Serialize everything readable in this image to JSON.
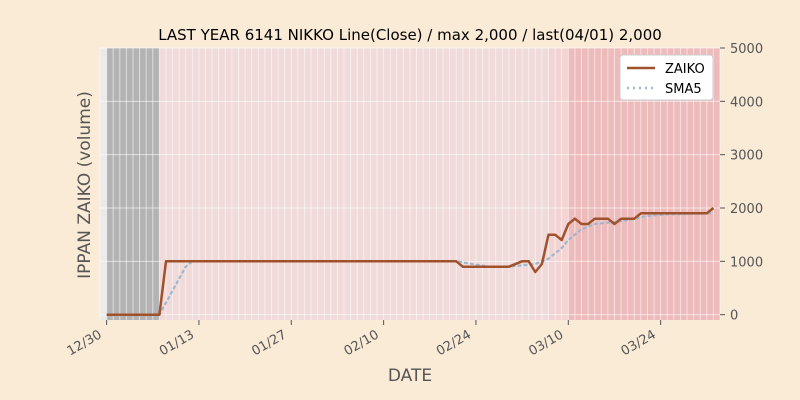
{
  "chart_data": {
    "type": "line",
    "title": "LAST YEAR 6141 NIKKO Line(Close) / max 2,000 / last(04/01) 2,000",
    "xlabel": "DATE",
    "ylabel": "IPPAN ZAIKO (volume)",
    "ylim": [
      -100,
      5000
    ],
    "yticks": [
      0,
      1000,
      2000,
      3000,
      4000,
      5000
    ],
    "ytick_labels": [
      "0",
      "1000",
      "2000",
      "3000",
      "4000",
      "5000"
    ],
    "y_axis_side": "right",
    "xlim_dates": [
      "2024-12-29",
      "2025-04-02"
    ],
    "xticks": [
      "2024-12-30",
      "2025-01-13",
      "2025-01-27",
      "2025-02-10",
      "2025-02-24",
      "2025-03-10",
      "2025-03-24"
    ],
    "xtick_labels": [
      "12/30",
      "01/13",
      "01/27",
      "02/10",
      "02/24",
      "03/10",
      "03/24"
    ],
    "grid": true,
    "legend": "top-right",
    "colors": {
      "zaiko": "#a0522d",
      "sma5": "#9fb6cd",
      "gray_band": "#a9a9a9",
      "pink_band": "#f4cccc",
      "red_band": "#f08080",
      "plot_bg": "#ebebeb"
    },
    "bands": [
      {
        "start": "2024-12-30",
        "end": "2025-01-07",
        "color": "gray_band",
        "opacity": 0.85
      },
      {
        "start": "2025-01-07",
        "end": "2025-03-07",
        "color": "pink_band",
        "opacity": 0.55
      },
      {
        "start": "2025-03-07",
        "end": "2025-03-10",
        "color": "pink_band",
        "opacity": 0.75
      },
      {
        "start": "2025-03-10",
        "end": "2025-04-02",
        "color": "red_band",
        "opacity": 0.45
      }
    ],
    "series": [
      {
        "name": "ZAIKO",
        "style": "solid",
        "points": [
          [
            "2024-12-30",
            0
          ],
          [
            "2025-01-07",
            0
          ],
          [
            "2025-01-08",
            1000
          ],
          [
            "2025-02-21",
            1000
          ],
          [
            "2025-02-22",
            900
          ],
          [
            "2025-03-01",
            900
          ],
          [
            "2025-03-03",
            1000
          ],
          [
            "2025-03-04",
            1000
          ],
          [
            "2025-03-05",
            800
          ],
          [
            "2025-03-06",
            950
          ],
          [
            "2025-03-07",
            1500
          ],
          [
            "2025-03-08",
            1500
          ],
          [
            "2025-03-09",
            1400
          ],
          [
            "2025-03-10",
            1700
          ],
          [
            "2025-03-11",
            1800
          ],
          [
            "2025-03-12",
            1700
          ],
          [
            "2025-03-13",
            1700
          ],
          [
            "2025-03-14",
            1800
          ],
          [
            "2025-03-16",
            1800
          ],
          [
            "2025-03-17",
            1700
          ],
          [
            "2025-03-18",
            1800
          ],
          [
            "2025-03-20",
            1800
          ],
          [
            "2025-03-21",
            1900
          ],
          [
            "2025-03-31",
            1900
          ],
          [
            "2025-04-01",
            2000
          ]
        ]
      },
      {
        "name": "SMA5",
        "style": "dotted",
        "points": [
          [
            "2025-01-07",
            0
          ],
          [
            "2025-01-11",
            900
          ],
          [
            "2025-01-12",
            1000
          ],
          [
            "2025-02-21",
            1000
          ],
          [
            "2025-02-26",
            900
          ],
          [
            "2025-03-01",
            900
          ],
          [
            "2025-03-05",
            950
          ],
          [
            "2025-03-07",
            1050
          ],
          [
            "2025-03-09",
            1250
          ],
          [
            "2025-03-10",
            1400
          ],
          [
            "2025-03-12",
            1600
          ],
          [
            "2025-03-14",
            1700
          ],
          [
            "2025-03-18",
            1750
          ],
          [
            "2025-03-22",
            1850
          ],
          [
            "2025-03-25",
            1880
          ],
          [
            "2025-04-01",
            1900
          ]
        ]
      }
    ]
  }
}
